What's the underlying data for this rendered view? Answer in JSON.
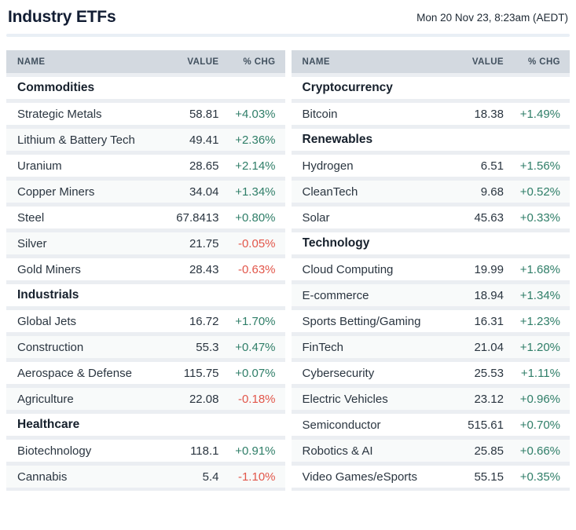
{
  "page": {
    "title": "Industry ETFs",
    "timestamp": "Mon 20 Nov 23, 8:23am (AEDT)"
  },
  "columns": {
    "name": "NAME",
    "value": "VALUE",
    "change": "% CHG"
  },
  "colors": {
    "positive": "#2f7e68",
    "negative": "#e2564a",
    "header_bg": "#d3d9e0",
    "header_text": "#42515f",
    "section_text": "#16202c",
    "row_text": "#2a3540",
    "separator": "#ebeef2",
    "alt_row_bg": "#f8fafa",
    "title_divider": "#e9eff5",
    "title_text": "#121d33"
  },
  "chart_data": {
    "type": "table",
    "title": "Industry ETFs",
    "timestamp": "Mon 20 Nov 23, 8:23am (AEDT)",
    "columns": [
      "NAME",
      "VALUE",
      "% CHG"
    ],
    "tables": [
      {
        "position": "left",
        "sections": [
          {
            "section": "Commodities",
            "rows": [
              {
                "name": "Strategic Metals",
                "value": "58.81",
                "change": "+4.03%"
              },
              {
                "name": "Lithium & Battery Tech",
                "value": "49.41",
                "change": "+2.36%"
              },
              {
                "name": "Uranium",
                "value": "28.65",
                "change": "+2.14%"
              },
              {
                "name": "Copper Miners",
                "value": "34.04",
                "change": "+1.34%"
              },
              {
                "name": "Steel",
                "value": "67.8413",
                "change": "+0.80%"
              },
              {
                "name": "Silver",
                "value": "21.75",
                "change": "-0.05%"
              },
              {
                "name": "Gold Miners",
                "value": "28.43",
                "change": "-0.63%"
              }
            ]
          },
          {
            "section": "Industrials",
            "rows": [
              {
                "name": "Global Jets",
                "value": "16.72",
                "change": "+1.70%"
              },
              {
                "name": "Construction",
                "value": "55.3",
                "change": "+0.47%"
              },
              {
                "name": "Aerospace & Defense",
                "value": "115.75",
                "change": "+0.07%"
              },
              {
                "name": "Agriculture",
                "value": "22.08",
                "change": "-0.18%"
              }
            ]
          },
          {
            "section": "Healthcare",
            "rows": [
              {
                "name": "Biotechnology",
                "value": "118.1",
                "change": "+0.91%"
              },
              {
                "name": "Cannabis",
                "value": "5.4",
                "change": "-1.10%"
              }
            ]
          }
        ]
      },
      {
        "position": "right",
        "sections": [
          {
            "section": "Cryptocurrency",
            "rows": [
              {
                "name": "Bitcoin",
                "value": "18.38",
                "change": "+1.49%"
              }
            ]
          },
          {
            "section": "Renewables",
            "rows": [
              {
                "name": "Hydrogen",
                "value": "6.51",
                "change": "+1.56%"
              },
              {
                "name": "CleanTech",
                "value": "9.68",
                "change": "+0.52%"
              },
              {
                "name": "Solar",
                "value": "45.63",
                "change": "+0.33%"
              }
            ]
          },
          {
            "section": "Technology",
            "rows": [
              {
                "name": "Cloud Computing",
                "value": "19.99",
                "change": "+1.68%"
              },
              {
                "name": "E-commerce",
                "value": "18.94",
                "change": "+1.34%"
              },
              {
                "name": "Sports Betting/Gaming",
                "value": "16.31",
                "change": "+1.23%"
              },
              {
                "name": "FinTech",
                "value": "21.04",
                "change": "+1.20%"
              },
              {
                "name": "Cybersecurity",
                "value": "25.53",
                "change": "+1.11%"
              },
              {
                "name": "Electric Vehicles",
                "value": "23.12",
                "change": "+0.96%"
              },
              {
                "name": "Semiconductor",
                "value": "515.61",
                "change": "+0.70%"
              },
              {
                "name": "Robotics & AI",
                "value": "25.85",
                "change": "+0.66%"
              },
              {
                "name": "Video Games/eSports",
                "value": "55.15",
                "change": "+0.35%"
              }
            ]
          }
        ]
      }
    ]
  }
}
